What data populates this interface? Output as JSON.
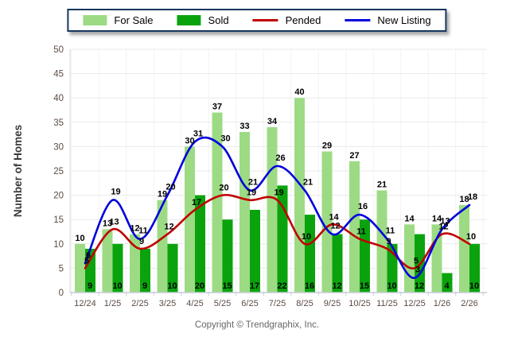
{
  "chart_data": {
    "type": "bar",
    "subtype": "grouped-bars-with-lines",
    "categories": [
      "12/24",
      "1/25",
      "2/25",
      "3/25",
      "4/25",
      "5/25",
      "6/25",
      "7/25",
      "8/25",
      "9/25",
      "10/25",
      "11/25",
      "12/25",
      "1/26",
      "2/26"
    ],
    "series": [
      {
        "name": "For Sale",
        "type": "bar",
        "color": "#9CDB84",
        "values": [
          10,
          13,
          12,
          19,
          30,
          37,
          33,
          34,
          40,
          29,
          27,
          21,
          14,
          14,
          18
        ]
      },
      {
        "name": "Sold",
        "type": "bar",
        "color": "#0AA30D",
        "values": [
          9,
          10,
          9,
          10,
          20,
          15,
          17,
          22,
          16,
          12,
          15,
          10,
          12,
          4,
          10
        ]
      },
      {
        "name": "Pended",
        "type": "line",
        "color": "#C00000",
        "values": [
          5,
          13,
          9,
          12,
          17,
          20,
          19,
          19,
          10,
          14,
          11,
          9,
          5,
          12,
          10
        ]
      },
      {
        "name": "New Listing",
        "type": "line",
        "color": "#0000DD",
        "values": [
          6,
          19,
          11,
          20,
          31,
          30,
          21,
          26,
          21,
          12,
          16,
          11,
          3,
          13,
          18
        ]
      }
    ],
    "title": "",
    "xlabel": "",
    "ylabel": "Number of Homes",
    "ylim": [
      0,
      50
    ],
    "ytick_step": 5,
    "yticks": [
      0,
      5,
      10,
      15,
      20,
      25,
      30,
      35,
      40,
      45,
      50
    ],
    "grid": true,
    "legend_position": "top-center",
    "data_labels": true
  },
  "styles": {
    "legend_border": "#17375E",
    "axis_label_color": "#5C4B44",
    "ylabel_color": "#3A3A3A",
    "data_label_color": "#000000",
    "gridline_color": "#E9E9E9",
    "vgridline_color": "#F4F4F4",
    "axis_line_color": "#C5CCD6"
  },
  "footer": {
    "copyright": "Copyright © Trendgraphix, Inc."
  }
}
